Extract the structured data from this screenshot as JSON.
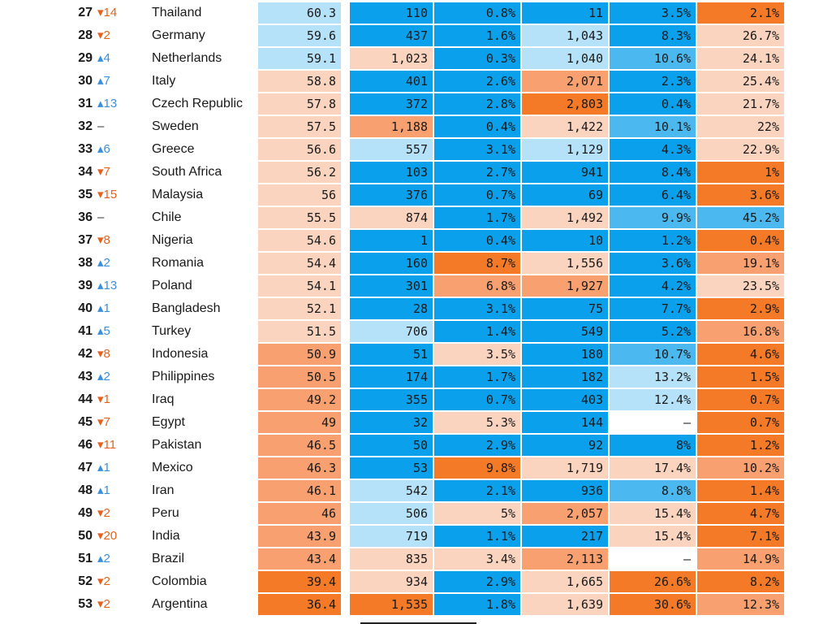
{
  "palette": {
    "c5": "#0aa0ec",
    "c4": "#4cb8f0",
    "c3": "#b5e2f8",
    "c2": "#fbd4c0",
    "c1": "#f9a070",
    "c0": "#f57a28",
    "none": "#ffffff"
  },
  "chart_data": {
    "type": "table",
    "columns": [
      "rank",
      "rank_change",
      "country",
      "score",
      "col_1",
      "col_2",
      "col_3",
      "col_4",
      "col_5"
    ],
    "rows": [
      {
        "rank": "27",
        "change": "14",
        "dir": "down",
        "country": "Thailand",
        "values": [
          "60.3",
          "110",
          "0.8%",
          "11",
          "3.5%",
          "2.1%"
        ],
        "colors": [
          "c3",
          "c5",
          "c5",
          "c5",
          "c5",
          "c0"
        ]
      },
      {
        "rank": "28",
        "change": "2",
        "dir": "down",
        "country": "Germany",
        "values": [
          "59.6",
          "437",
          "1.6%",
          "1,043",
          "8.3%",
          "26.7%"
        ],
        "colors": [
          "c3",
          "c5",
          "c5",
          "c3",
          "c5",
          "c2"
        ]
      },
      {
        "rank": "29",
        "change": "4",
        "dir": "up",
        "country": "Netherlands",
        "values": [
          "59.1",
          "1,023",
          "0.3%",
          "1,040",
          "10.6%",
          "24.1%"
        ],
        "colors": [
          "c3",
          "c2",
          "c5",
          "c3",
          "c4",
          "c2"
        ]
      },
      {
        "rank": "30",
        "change": "7",
        "dir": "up",
        "country": "Italy",
        "values": [
          "58.8",
          "401",
          "2.6%",
          "2,071",
          "2.3%",
          "25.4%"
        ],
        "colors": [
          "c2",
          "c5",
          "c5",
          "c1",
          "c5",
          "c2"
        ]
      },
      {
        "rank": "31",
        "change": "13",
        "dir": "up",
        "country": "Czech Republic",
        "values": [
          "57.8",
          "372",
          "2.8%",
          "2,803",
          "0.4%",
          "21.7%"
        ],
        "colors": [
          "c2",
          "c5",
          "c5",
          "c0",
          "c5",
          "c2"
        ]
      },
      {
        "rank": "32",
        "change": "–",
        "dir": "same",
        "country": "Sweden",
        "values": [
          "57.5",
          "1,188",
          "0.4%",
          "1,422",
          "10.1%",
          "22%"
        ],
        "colors": [
          "c2",
          "c1",
          "c5",
          "c2",
          "c4",
          "c2"
        ]
      },
      {
        "rank": "33",
        "change": "6",
        "dir": "up",
        "country": "Greece",
        "values": [
          "56.6",
          "557",
          "3.1%",
          "1,129",
          "4.3%",
          "22.9%"
        ],
        "colors": [
          "c2",
          "c3",
          "c5",
          "c3",
          "c5",
          "c2"
        ]
      },
      {
        "rank": "34",
        "change": "7",
        "dir": "down",
        "country": "South Africa",
        "values": [
          "56.2",
          "103",
          "2.7%",
          "941",
          "8.4%",
          "1%"
        ],
        "colors": [
          "c2",
          "c5",
          "c5",
          "c5",
          "c5",
          "c0"
        ]
      },
      {
        "rank": "35",
        "change": "15",
        "dir": "down",
        "country": "Malaysia",
        "values": [
          "56",
          "376",
          "0.7%",
          "69",
          "6.4%",
          "3.6%"
        ],
        "colors": [
          "c2",
          "c5",
          "c5",
          "c5",
          "c5",
          "c0"
        ]
      },
      {
        "rank": "36",
        "change": "–",
        "dir": "same",
        "country": "Chile",
        "values": [
          "55.5",
          "874",
          "1.7%",
          "1,492",
          "9.9%",
          "45.2%"
        ],
        "colors": [
          "c2",
          "c2",
          "c5",
          "c2",
          "c4",
          "c4"
        ]
      },
      {
        "rank": "37",
        "change": "8",
        "dir": "down",
        "country": "Nigeria",
        "values": [
          "54.6",
          "1",
          "0.4%",
          "10",
          "1.2%",
          "0.4%"
        ],
        "colors": [
          "c2",
          "c5",
          "c5",
          "c5",
          "c5",
          "c0"
        ]
      },
      {
        "rank": "38",
        "change": "2",
        "dir": "up",
        "country": "Romania",
        "values": [
          "54.4",
          "160",
          "8.7%",
          "1,556",
          "3.6%",
          "19.1%"
        ],
        "colors": [
          "c2",
          "c5",
          "c0",
          "c2",
          "c5",
          "c1"
        ]
      },
      {
        "rank": "39",
        "change": "13",
        "dir": "up",
        "country": "Poland",
        "values": [
          "54.1",
          "301",
          "6.8%",
          "1,927",
          "4.2%",
          "23.5%"
        ],
        "colors": [
          "c2",
          "c5",
          "c1",
          "c1",
          "c5",
          "c2"
        ]
      },
      {
        "rank": "40",
        "change": "1",
        "dir": "up",
        "country": "Bangladesh",
        "values": [
          "52.1",
          "28",
          "3.1%",
          "75",
          "7.7%",
          "2.9%"
        ],
        "colors": [
          "c2",
          "c5",
          "c5",
          "c5",
          "c5",
          "c0"
        ]
      },
      {
        "rank": "41",
        "change": "5",
        "dir": "up",
        "country": "Turkey",
        "values": [
          "51.5",
          "706",
          "1.4%",
          "549",
          "5.2%",
          "16.8%"
        ],
        "colors": [
          "c2",
          "c3",
          "c5",
          "c5",
          "c5",
          "c1"
        ]
      },
      {
        "rank": "42",
        "change": "8",
        "dir": "down",
        "country": "Indonesia",
        "values": [
          "50.9",
          "51",
          "3.5%",
          "180",
          "10.7%",
          "4.6%"
        ],
        "colors": [
          "c1",
          "c5",
          "c2",
          "c5",
          "c4",
          "c0"
        ]
      },
      {
        "rank": "43",
        "change": "2",
        "dir": "up",
        "country": "Philippines",
        "values": [
          "50.5",
          "174",
          "1.7%",
          "182",
          "13.2%",
          "1.5%"
        ],
        "colors": [
          "c1",
          "c5",
          "c5",
          "c5",
          "c3",
          "c0"
        ]
      },
      {
        "rank": "44",
        "change": "1",
        "dir": "down",
        "country": "Iraq",
        "values": [
          "49.2",
          "355",
          "0.7%",
          "403",
          "12.4%",
          "0.7%"
        ],
        "colors": [
          "c1",
          "c5",
          "c5",
          "c5",
          "c3",
          "c0"
        ]
      },
      {
        "rank": "45",
        "change": "7",
        "dir": "down",
        "country": "Egypt",
        "values": [
          "49",
          "32",
          "5.3%",
          "144",
          "–",
          "0.7%"
        ],
        "colors": [
          "c1",
          "c5",
          "c2",
          "c5",
          "none",
          "c0"
        ]
      },
      {
        "rank": "46",
        "change": "11",
        "dir": "down",
        "country": "Pakistan",
        "values": [
          "46.5",
          "50",
          "2.9%",
          "92",
          "8%",
          "1.2%"
        ],
        "colors": [
          "c1",
          "c5",
          "c5",
          "c5",
          "c5",
          "c0"
        ]
      },
      {
        "rank": "47",
        "change": "1",
        "dir": "up",
        "country": "Mexico",
        "values": [
          "46.3",
          "53",
          "9.8%",
          "1,719",
          "17.4%",
          "10.2%"
        ],
        "colors": [
          "c1",
          "c5",
          "c0",
          "c2",
          "c2",
          "c1"
        ]
      },
      {
        "rank": "48",
        "change": "1",
        "dir": "up",
        "country": "Iran",
        "values": [
          "46.1",
          "542",
          "2.1%",
          "936",
          "8.8%",
          "1.4%"
        ],
        "colors": [
          "c1",
          "c3",
          "c5",
          "c5",
          "c4",
          "c0"
        ]
      },
      {
        "rank": "49",
        "change": "2",
        "dir": "down",
        "country": "Peru",
        "values": [
          "46",
          "506",
          "5%",
          "2,057",
          "15.4%",
          "4.7%"
        ],
        "colors": [
          "c1",
          "c3",
          "c2",
          "c1",
          "c2",
          "c0"
        ]
      },
      {
        "rank": "50",
        "change": "20",
        "dir": "down",
        "country": "India",
        "values": [
          "43.9",
          "719",
          "1.1%",
          "217",
          "15.4%",
          "7.1%"
        ],
        "colors": [
          "c1",
          "c3",
          "c5",
          "c5",
          "c2",
          "c0"
        ]
      },
      {
        "rank": "51",
        "change": "2",
        "dir": "up",
        "country": "Brazil",
        "values": [
          "43.4",
          "835",
          "3.4%",
          "2,113",
          "–",
          "14.9%"
        ],
        "colors": [
          "c1",
          "c2",
          "c2",
          "c1",
          "none",
          "c1"
        ]
      },
      {
        "rank": "52",
        "change": "2",
        "dir": "down",
        "country": "Colombia",
        "values": [
          "39.4",
          "934",
          "2.9%",
          "1,665",
          "26.6%",
          "8.2%"
        ],
        "colors": [
          "c0",
          "c2",
          "c5",
          "c2",
          "c0",
          "c0"
        ]
      },
      {
        "rank": "53",
        "change": "2",
        "dir": "down",
        "country": "Argentina",
        "values": [
          "36.4",
          "1,535",
          "1.8%",
          "1,639",
          "30.6%",
          "12.3%"
        ],
        "colors": [
          "c0",
          "c0",
          "c5",
          "c2",
          "c0",
          "c1"
        ]
      }
    ]
  }
}
